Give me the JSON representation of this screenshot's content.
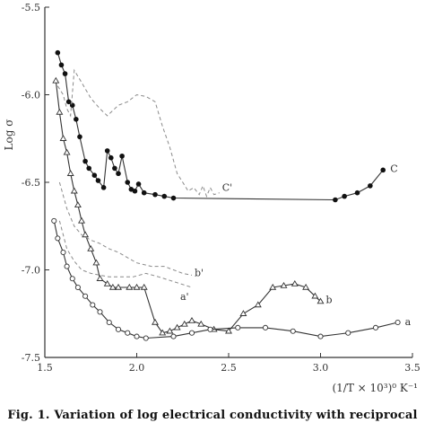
{
  "chart_data": {
    "type": "line",
    "title": "",
    "caption": "Fig. 1. Variation of log electrical conductivity with reciprocal of",
    "xlabel": "(1/T × 10³)⁰ K⁻¹",
    "ylabel": "Log σ",
    "xlim": [
      1.5,
      3.5
    ],
    "ylim": [
      -7.5,
      -5.5
    ],
    "xticks": [
      "1.5",
      "2.0",
      "2.5",
      "3.0",
      "3.5"
    ],
    "yticks": [
      "-5.5",
      "-6.0",
      "-6.5",
      "-7.0",
      "-7.5"
    ],
    "grid": false,
    "series": [
      {
        "name": "C",
        "style": "solid",
        "marker": "filled-circle",
        "x": [
          1.57,
          1.59,
          1.61,
          1.63,
          1.65,
          1.67,
          1.69,
          1.72,
          1.74,
          1.77,
          1.79,
          1.82,
          1.84,
          1.86,
          1.88,
          1.9,
          1.92,
          1.95,
          1.97,
          1.99,
          2.01,
          2.04,
          2.1,
          2.15,
          2.2,
          3.08,
          3.13,
          3.2,
          3.27,
          3.34
        ],
        "y": [
          -5.76,
          -5.83,
          -5.88,
          -6.04,
          -6.06,
          -6.14,
          -6.24,
          -6.38,
          -6.42,
          -6.46,
          -6.49,
          -6.53,
          -6.32,
          -6.36,
          -6.42,
          -6.45,
          -6.35,
          -6.5,
          -6.54,
          -6.55,
          -6.51,
          -6.56,
          -6.57,
          -6.58,
          -6.59,
          -6.6,
          -6.58,
          -6.56,
          -6.52,
          -6.43
        ]
      },
      {
        "name": "C'",
        "style": "dashed",
        "marker": "none",
        "x": [
          1.57,
          1.6,
          1.62,
          1.64,
          1.66,
          1.7,
          1.75,
          1.8,
          1.84,
          1.9,
          1.95,
          2.0,
          2.05,
          2.1,
          2.14,
          2.18,
          2.22,
          2.25,
          2.28,
          2.31,
          2.34,
          2.36,
          2.38,
          2.4,
          2.42,
          2.45
        ],
        "y": [
          -5.95,
          -6.0,
          -6.08,
          -6.12,
          -5.86,
          -5.93,
          -6.02,
          -6.08,
          -6.12,
          -6.06,
          -6.04,
          -6.0,
          -6.01,
          -6.04,
          -6.18,
          -6.3,
          -6.45,
          -6.5,
          -6.55,
          -6.53,
          -6.57,
          -6.52,
          -6.58,
          -6.53,
          -6.57,
          -6.56
        ]
      },
      {
        "name": "b",
        "style": "solid",
        "marker": "open-triangle",
        "x": [
          1.56,
          1.58,
          1.6,
          1.62,
          1.64,
          1.66,
          1.68,
          1.7,
          1.72,
          1.75,
          1.78,
          1.8,
          1.84,
          1.87,
          1.9,
          1.96,
          2.0,
          2.04,
          2.1,
          2.14,
          2.18,
          2.22,
          2.26,
          2.3,
          2.35,
          2.42,
          2.5,
          2.58,
          2.66,
          2.74,
          2.8,
          2.86,
          2.92,
          2.97,
          3.0
        ],
        "y": [
          -5.92,
          -6.1,
          -6.25,
          -6.33,
          -6.45,
          -6.55,
          -6.63,
          -6.72,
          -6.8,
          -6.88,
          -6.96,
          -7.05,
          -7.08,
          -7.1,
          -7.1,
          -7.1,
          -7.1,
          -7.1,
          -7.3,
          -7.36,
          -7.35,
          -7.33,
          -7.31,
          -7.29,
          -7.31,
          -7.34,
          -7.35,
          -7.25,
          -7.2,
          -7.1,
          -7.09,
          -7.08,
          -7.1,
          -7.15,
          -7.18
        ]
      },
      {
        "name": "b'",
        "style": "dashed",
        "marker": "none",
        "x": [
          1.58,
          1.62,
          1.66,
          1.7,
          1.75,
          1.8,
          1.85,
          1.9,
          2.0,
          2.08,
          2.15,
          2.2,
          2.25,
          2.3
        ],
        "y": [
          -6.5,
          -6.65,
          -6.75,
          -6.8,
          -6.83,
          -6.85,
          -6.88,
          -6.9,
          -6.96,
          -6.98,
          -6.98,
          -7.0,
          -7.02,
          -7.03
        ]
      },
      {
        "name": "a'",
        "style": "dashed",
        "marker": "none",
        "x": [
          1.58,
          1.62,
          1.66,
          1.7,
          1.75,
          1.8,
          1.85,
          1.9,
          1.98,
          2.05,
          2.12,
          2.18,
          2.24,
          2.3
        ],
        "y": [
          -6.72,
          -6.88,
          -6.95,
          -7.0,
          -7.02,
          -7.03,
          -7.04,
          -7.04,
          -7.04,
          -7.02,
          -7.04,
          -7.06,
          -7.08,
          -7.1
        ]
      },
      {
        "name": "a",
        "style": "solid",
        "marker": "open-circle",
        "x": [
          1.55,
          1.57,
          1.6,
          1.62,
          1.65,
          1.68,
          1.72,
          1.76,
          1.8,
          1.85,
          1.9,
          1.95,
          2.0,
          2.05,
          2.2,
          2.3,
          2.4,
          2.55,
          2.7,
          2.85,
          3.0,
          3.15,
          3.3,
          3.42
        ],
        "y": [
          -6.72,
          -6.82,
          -6.9,
          -6.98,
          -7.05,
          -7.1,
          -7.15,
          -7.2,
          -7.24,
          -7.3,
          -7.34,
          -7.36,
          -7.38,
          -7.39,
          -7.38,
          -7.36,
          -7.34,
          -7.33,
          -7.33,
          -7.35,
          -7.38,
          -7.36,
          -7.33,
          -7.3
        ]
      }
    ],
    "labels": {
      "C": "C",
      "C'": "C'",
      "b": "b",
      "b'": "b'",
      "a'": "a'",
      "a": "a"
    }
  }
}
